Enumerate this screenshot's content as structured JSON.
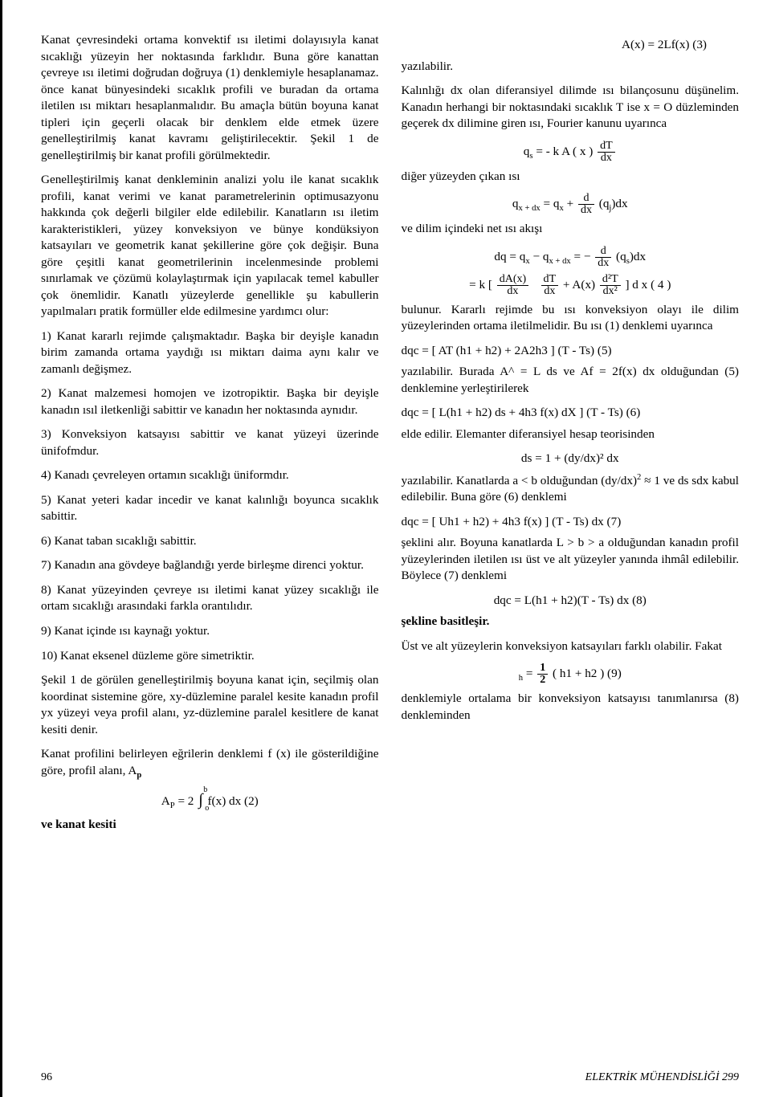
{
  "left": {
    "p1": "Kanat çevresindeki ortama konvektif ısı iletimi dolayısıyla kanat sıcaklığı yüzeyin her noktasında farklıdır. Buna göre kanattan çevreye ısı iletimi doğrudan doğruya (1) denklemiyle hesaplanamaz. önce kanat bünyesindeki sıcaklık profili ve buradan da ortama iletilen ısı miktarı hesaplanmalıdır. Bu amaçla bütün boyuna kanat tipleri için geçerli olacak bir denklem elde etmek üzere genelleştirilmiş kanat kavramı geliştirilecektir. Şekil 1 de genelleştirilmiş bir kanat profili görülmektedir.",
    "p2": "Genelleştirilmiş kanat denkleminin analizi yolu ile kanat sıcaklık profili, kanat verimi ve kanat parametrelerinin optimusazyonu hakkında çok değerli bilgiler elde edilebilir. Kanatların ısı iletim karakteristikleri, yüzey konveksiyon ve bünye kondüksiyon katsayıları ve geometrik kanat şekillerine göre çok değişir. Buna göre çeşitli kanat geometrilerinin incelenmesinde problemi sınırlamak ve çözümü kolaylaştırmak için yapılacak temel kabuller çok önemlidir. Kanatlı yüzeylerde genellikle şu kabullerin yapılmaları pratik formüller elde edilmesine yardımcı olur:",
    "i1": "1) Kanat kararlı rejimde çalışmaktadır. Başka bir deyişle kanadın birim zamanda ortama yaydığı ısı miktarı daima aynı kalır ve zamanlı değişmez.",
    "i2": "2) Kanat malzemesi homojen ve izotropiktir. Başka bir deyişle kanadın ısıl iletkenliği sabittir ve kanadın her noktasında aynıdır.",
    "i3": "3) Konveksiyon katsayısı sabittir ve kanat yüzeyi üzerinde ünifofmdur.",
    "i4": "4) Kanadı çevreleyen ortamın sıcaklığı üniformdır.",
    "i5": "5) Kanat yeteri kadar incedir ve kanat kalınlığı boyunca sıcaklık sabittir.",
    "i6": "6) Kanat taban sıcaklığı sabittir.",
    "i7": "7) Kanadın ana gövdeye bağlandığı yerde birleşme direnci yoktur.",
    "i8": "8) Kanat yüzeyinden çevreye ısı iletimi kanat yüzey sıcaklığı ile ortam sıcaklığı arasındaki farkla orantılıdır.",
    "i9": "9) Kanat içinde ısı kaynağı yoktur.",
    "i10": "10) Kanat eksenel düzleme göre simetriktir.",
    "p3": "Şekil 1 de görülen genelleştirilmiş boyuna kanat için, seçilmiş olan koordinat sistemine göre, xy-düzlemine paralel kesite kanadın profil yx yüzeyi veya profil alanı, yz-düzlemine paralel kesitlere de kanat kesiti denir.",
    "p4a": "Kanat profilini belirleyen eğrilerin denklemi f (x) ile gösterildiğine göre, profil alanı, A",
    "p4a_sub": "p",
    "eq2_lead": "A",
    "eq2_sub": "P",
    "eq2_mid": "= 2",
    "eq2_int_top": "b",
    "eq2_int_bot": "o",
    "eq2_tail": "f(x)  dx     (2)",
    "p5": "ve kanat kesiti"
  },
  "right": {
    "eq3": "A(x) = 2Lf(x)        (3)",
    "p1": "yazılabilir.",
    "p2": "Kalınlığı dx olan diferansiyel dilimde ısı bilançosunu düşünelim. Kanadın herhangi bir noktasındaki sıcaklık T ise x = O düzleminden geçerek dx dilimine giren ısı, Fourier kanunu uyarınca",
    "eq_qs_lead": "q",
    "eq_qs_sub": "s",
    "eq_qs_mid": " = - k A ( x )",
    "eq_qs_num": "dT",
    "eq_qs_den": "dx",
    "p3": "diğer yüzeyden çıkan ısı",
    "eq_qxdx_l": "q",
    "eq_qxdx_lsub": "x + dx",
    "eq_qxdx_mid": " = q",
    "eq_qxdx_msub": "x",
    "eq_qxdx_plus": " + ",
    "eq_qxdx_num": "d",
    "eq_qxdx_den": "dx",
    "eq_qxdx_tail": " (q",
    "eq_qxdx_tsub": "j",
    "eq_qxdx_end": ")dx",
    "p4": "ve dilim içindeki net ısı akışı",
    "eq_dq_l": "dq  =  q",
    "eq_dq_lsub": "x",
    "eq_dq_mid1": " − q",
    "eq_dq_msub": "x + dx",
    "eq_dq_mid2": " =  − ",
    "eq_dq_num": "d",
    "eq_dq_den": "dx",
    "eq_dq_tail": " (q",
    "eq_dq_tsub": "s",
    "eq_dq_end": ")dx",
    "eq4_l": "= k [ ",
    "eq4_n1": "dA(x)",
    "eq4_d1": "dx",
    "eq4_n2": "dT",
    "eq4_d2": "dx",
    "eq4_mid": "  +  A(x) ",
    "eq4_n3": "d²T",
    "eq4_d3": "dx²",
    "eq4_tail": " ] d x ( 4 )",
    "p5": "bulunur. Kararlı rejimde bu ısı konveksiyon olayı ile dilim yüzeylerinden ortama iletilmelidir. Bu ısı (1) denklemi uyarınca",
    "eq5": "dqc = [ AT (h1 + h2) + 2A2h3 ] (T - Ts)     (5)",
    "p6a": "yazılabilir. Burada A^ = L ds ve Af = 2f(x) dx olduğundan (5) denklemine yerleştirilerek",
    "eq6": "dqc = [ L(h1 + h2) ds + 4h3 f(x) dX ] (T - Ts) (6)",
    "p7": "elde edilir. Elemanter diferansiyel hesap teorisinden",
    "eq_ds": "ds = 1 + (dy/dx)²  dx",
    "p8a": "yazılabilir. Kanatlarda a < b olduğundan (dy/dx)",
    "p8_sup": "2",
    "p8b": " ≈ 1 ve ds sdx kabul edilebilir. Buna göre (6) denklemi",
    "eq7": "dqc = [ Uh1 + h2) + 4h3 f(x) ] (T - Ts) dx     (7)",
    "p9": "şeklini alır. Boyuna kanatlarda L > b > a olduğundan kanadın profil yüzeylerinden iletilen ısı üst ve alt yüzeyler yanında ihmâl edilebilir. Böylece (7) denklemi",
    "eq8": "dqc = L(h1 + h2)(T - Ts)  dx      (8)",
    "p10": "şekline basitleşir.",
    "p11": "Üst ve alt yüzeylerin konveksiyon katsayıları farklı olabilir. Fakat",
    "eq9_sub": "h",
    "eq9_mid": " = ",
    "eq9_num": "1",
    "eq9_den": "2",
    "eq9_tail": " ( h1 + h2 )       (9)",
    "p12": "denklemiyle ortalama bir konveksiyon katsayısı tanımlanırsa (8) denkleminden"
  },
  "footer": {
    "page": "96",
    "journal": "ELEKTRİK MÜHENDİSLİĞİ 299"
  }
}
